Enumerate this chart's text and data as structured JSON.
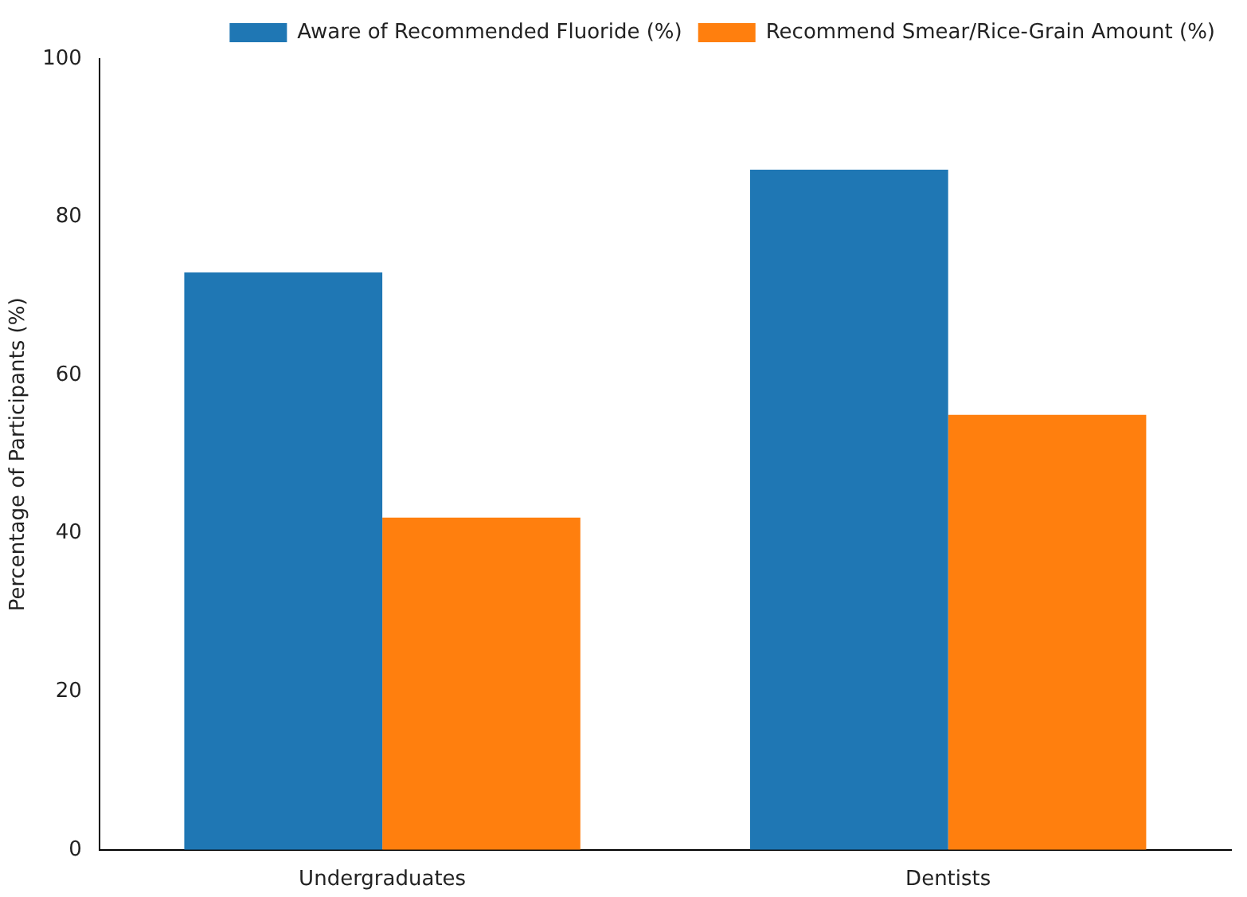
{
  "chart_data": {
    "type": "bar",
    "ylabel": "Percentage of Participants (%)",
    "categories": [
      "Undergraduates",
      "Dentists"
    ],
    "series": [
      {
        "name": "Aware of Recommended Fluoride (%)",
        "color": "#1f77b4",
        "values": [
          73,
          86
        ]
      },
      {
        "name": "Recommend Smear/Rice-Grain Amount (%)",
        "color": "#ff7f0e",
        "values": [
          42,
          55
        ]
      }
    ],
    "ylim": [
      0,
      100
    ],
    "yticks": [
      0,
      20,
      40,
      60,
      80,
      100
    ],
    "grid": false,
    "legend": "top right"
  }
}
